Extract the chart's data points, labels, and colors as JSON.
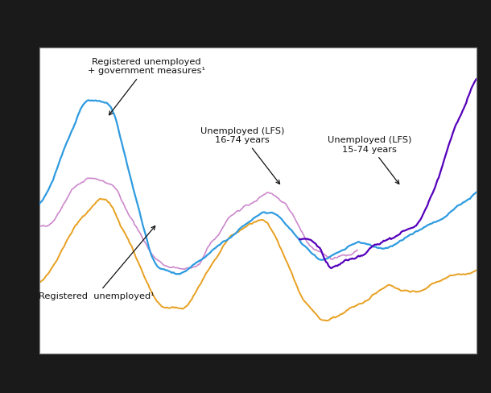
{
  "background_color": "#1a1a1a",
  "plot_bg_color": "#ffffff",
  "grid_color": "#cccccc",
  "line_blue_color": "#2e9be0",
  "line_pink_color": "#cc88cc",
  "line_orange_color": "#e8a020",
  "line_purple_color": "#5500bb",
  "figsize": [
    6.1,
    4.88
  ],
  "dpi": 100,
  "n_points": 350,
  "ylim": [
    0.2,
    0.98
  ],
  "annotations": [
    {
      "text": "Registered unemployed\n+ government measures¹",
      "xf_arrow": 0.155,
      "yf_arrow": 0.77,
      "xf_text": 0.245,
      "yf_text": 0.965
    },
    {
      "text": "Registered  unemployed¹",
      "xf_arrow": 0.27,
      "yf_arrow": 0.425,
      "xf_text": 0.13,
      "yf_text": 0.175
    },
    {
      "text": "Unemployed (LFS)\n16-74 years",
      "xf_arrow": 0.555,
      "yf_arrow": 0.545,
      "xf_text": 0.465,
      "yf_text": 0.74
    },
    {
      "text": "Unemployed (LFS)\n15-74 years",
      "xf_arrow": 0.828,
      "yf_arrow": 0.545,
      "xf_text": 0.755,
      "yf_text": 0.71
    }
  ]
}
